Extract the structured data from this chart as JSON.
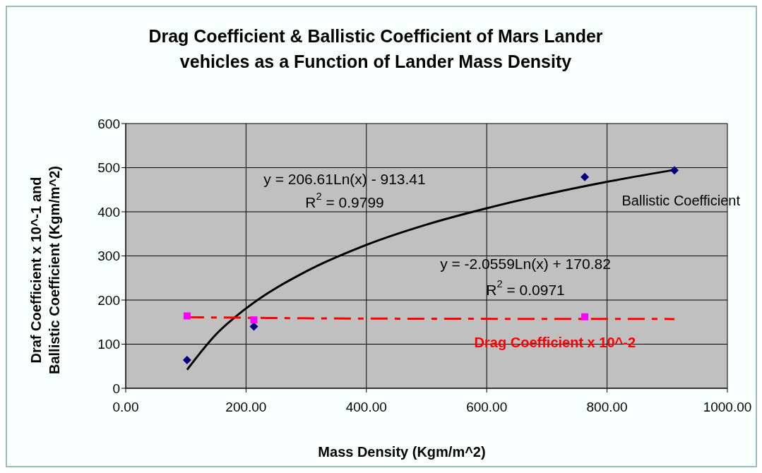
{
  "chart_data": {
    "type": "scatter",
    "title": "Drag Coefficient & Ballistic Coefficient of Mars Lander\nvehicles as a Function of Lander Mass Density",
    "xlabel": "Mass Density (Kgm/m^2)",
    "ylabel": "Draf Coefficient x 10^-1 and\nBallistic Coefficient (Kgm/m^2)",
    "series": [
      {
        "type": "scatter",
        "color": "#000080",
        "marker": "diamond",
        "x": [
          102,
          213,
          763,
          912
        ],
        "values": [
          64,
          140,
          479,
          494
        ]
      },
      {
        "type": "scatter",
        "color": "#ff00ff",
        "marker": "square",
        "x": [
          102,
          213,
          763
        ],
        "values": [
          164,
          155,
          162
        ]
      },
      {
        "type": "line",
        "name": "Ballistic Coefficient",
        "color": "#000000",
        "line_style": "solid",
        "x": [
          102,
          150,
          200,
          300,
          400,
          500,
          600,
          700,
          800,
          912
        ],
        "values": [
          42,
          122,
          181,
          265,
          325,
          371,
          408,
          440,
          468,
          495
        ]
      },
      {
        "type": "line",
        "name": "Drag Coefficient x 10^-2",
        "color": "#ff0000",
        "line_style": "dashed",
        "x": [
          102,
          400,
          912
        ],
        "values": [
          161,
          158,
          157
        ]
      }
    ],
    "xlim": [
      0,
      1000
    ],
    "xticks": [
      {
        "value": 0,
        "label": "0.00"
      },
      {
        "value": 200,
        "label": "200.00"
      },
      {
        "value": 400,
        "label": "400.00"
      },
      {
        "value": 600,
        "label": "600.00"
      },
      {
        "value": 800,
        "label": "800.00"
      },
      {
        "value": 1000,
        "label": "1000.00"
      }
    ],
    "ylim": [
      0,
      600
    ],
    "yticks": [
      0,
      100,
      200,
      300,
      400,
      500,
      600
    ],
    "grid": true,
    "annotations": [
      "y = 206.61Ln(x) - 913.41",
      "R$^{2}$ = 0.9799",
      "y = -2.0559Ln(x) + 170.82",
      "R$^{2}$ = 0.0971"
    ]
  }
}
